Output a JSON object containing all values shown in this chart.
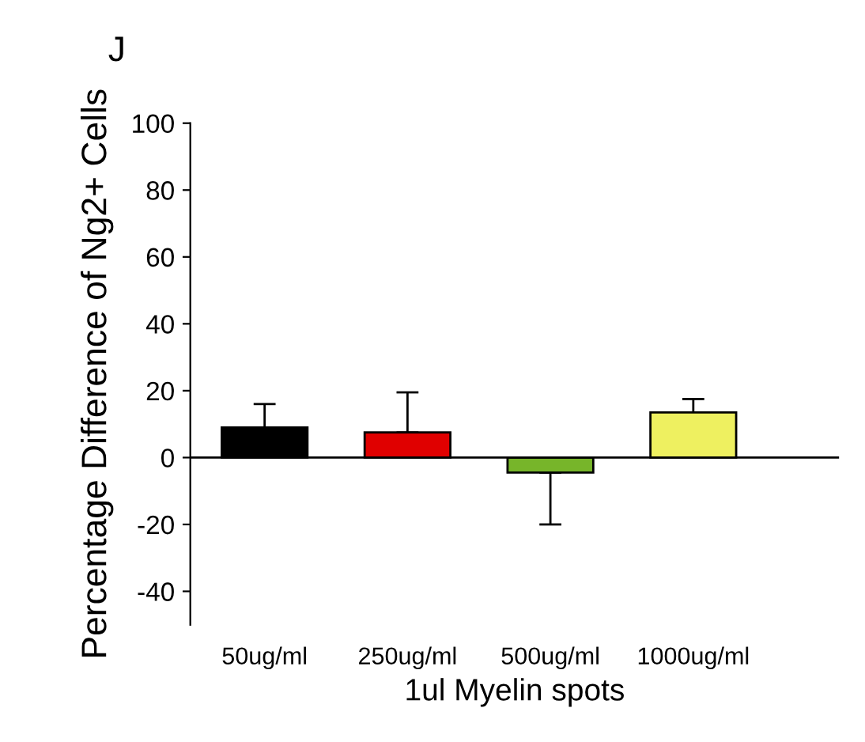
{
  "chart_data": {
    "type": "bar",
    "categories": [
      "50ug/ml",
      "250ug/ml",
      "500ug/ml",
      "1000ug/ml"
    ],
    "values": [
      9,
      7.5,
      -4.5,
      13.5
    ],
    "colors": [
      "#000000",
      "#e00000",
      "#77b52a",
      "#eef060"
    ],
    "errors": [
      [
        9,
        16
      ],
      [
        7.5,
        19.5
      ],
      [
        -20,
        -4.5
      ],
      [
        13.5,
        17.5
      ]
    ],
    "xlabel": "1ul Myelin spots",
    "ylabel": "Percentage Difference of Ng2+ Cells",
    "annotations": [
      "J"
    ],
    "ylim": [
      -50,
      100
    ],
    "yticks": [
      -40,
      -20,
      0,
      20,
      40,
      60,
      80,
      100
    ],
    "ref_lines": [
      {
        "axis": "y",
        "value": 0,
        "color": "#000000"
      }
    ],
    "grid": false
  }
}
